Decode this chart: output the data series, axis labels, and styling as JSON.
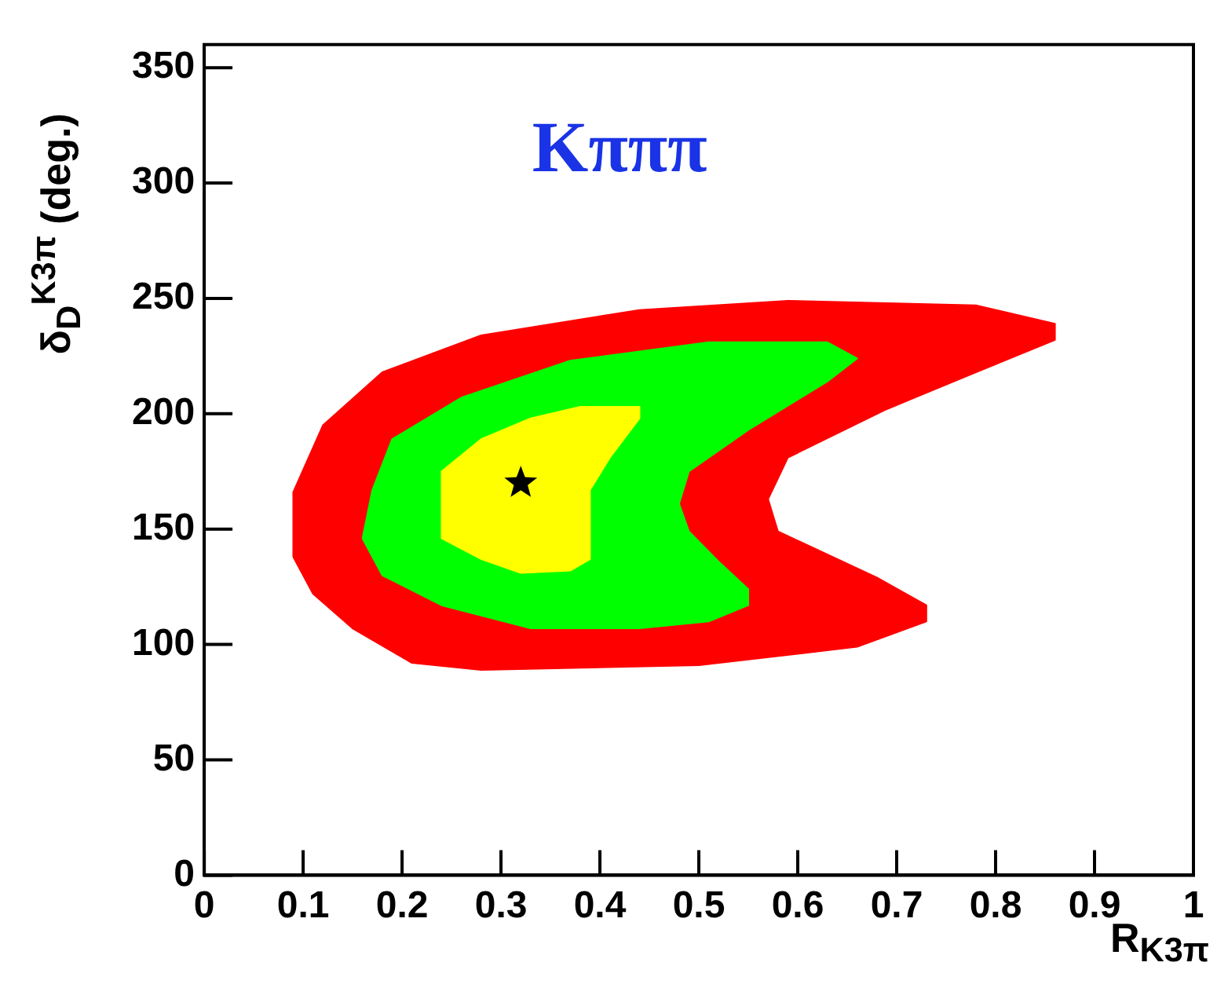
{
  "chart_data": {
    "type": "area",
    "title": "Kπππ",
    "xlabel": "R$_{K3π}$",
    "ylabel": "δ$_{D}$$^{K3π}$ (deg.)",
    "xlim": [
      0,
      1
    ],
    "xticks": [
      0,
      0.1,
      0.2,
      0.3,
      0.4,
      0.5,
      0.6,
      0.7,
      0.8,
      0.9,
      1
    ],
    "ylim": [
      0,
      360
    ],
    "yticks": [
      0,
      50,
      100,
      150,
      200,
      250,
      300,
      350
    ],
    "grid": false,
    "legend": false,
    "series": [
      {
        "color": "#ff0000",
        "x": [
          0.09,
          0.09,
          0.12,
          0.18,
          0.28,
          0.44,
          0.59,
          0.78,
          0.86,
          0.86,
          0.78,
          0.69,
          0.59,
          0.57,
          0.58,
          0.68,
          0.73,
          0.73,
          0.66,
          0.5,
          0.28,
          0.21,
          0.15,
          0.11,
          0.09
        ],
        "values": [
          138,
          166,
          195,
          218,
          234,
          245,
          249,
          247,
          239,
          232,
          218,
          202,
          181,
          163,
          149,
          129,
          117,
          110,
          99,
          91,
          89,
          92,
          107,
          122,
          138
        ]
      },
      {
        "color": "#00ff00",
        "x": [
          0.16,
          0.17,
          0.19,
          0.26,
          0.37,
          0.51,
          0.63,
          0.66,
          0.63,
          0.55,
          0.49,
          0.48,
          0.49,
          0.52,
          0.55,
          0.55,
          0.51,
          0.44,
          0.33,
          0.24,
          0.18,
          0.16
        ],
        "values": [
          146,
          167,
          189,
          207,
          223,
          231,
          231,
          224,
          214,
          193,
          175,
          161,
          149,
          136,
          124,
          117,
          110,
          107,
          107,
          117,
          130,
          146
        ]
      },
      {
        "color": "#ffff00",
        "x": [
          0.24,
          0.24,
          0.28,
          0.33,
          0.38,
          0.44,
          0.44,
          0.41,
          0.39,
          0.39,
          0.37,
          0.32,
          0.28,
          0.24,
          0.24
        ],
        "values": [
          159,
          175,
          189,
          198,
          203,
          203,
          198,
          181,
          167,
          137,
          132,
          131,
          137,
          146,
          159
        ]
      },
      {
        "type": "scatter",
        "color": "#000000",
        "marker": "star",
        "x": [
          0.32
        ],
        "values": [
          170
        ]
      }
    ]
  }
}
